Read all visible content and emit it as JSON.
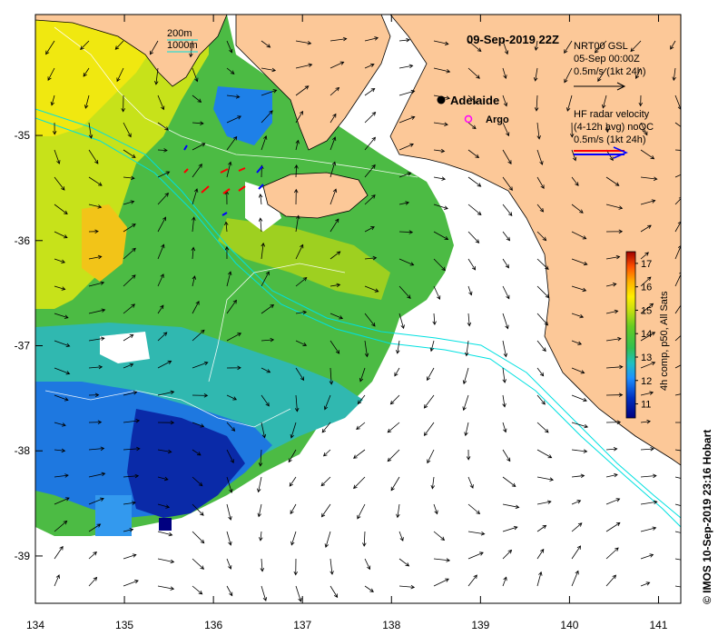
{
  "map": {
    "title": "09-Sep-2019 22Z",
    "credit": "© IMOS 10-Sep-2019 23:16 Hobart",
    "x_ticks": [
      "134",
      "135",
      "136",
      "137",
      "138",
      "139",
      "140",
      "141"
    ],
    "y_ticks": [
      "-35",
      "-36",
      "-37",
      "-38",
      "-39"
    ],
    "x_range": [
      134,
      141.25
    ],
    "y_range": [
      -39.45,
      -33.85
    ],
    "depth_legend": {
      "contour_1": "200m",
      "contour_2": "1000m"
    },
    "nrt_legend": {
      "line1": "NRT00 GSL",
      "line2": "05-Sep 00:00Z",
      "line3": "0.5m/s (1kt 24h)"
    },
    "hf_legend": {
      "line1": "HF radar velocity",
      "line2": "(4-12h avg) noQC",
      "line3": "0.5m/s (1kt 24h)"
    },
    "places": {
      "adelaide": "Adelaide",
      "argo": "Argo"
    },
    "colorbar": {
      "label": "4h comp, p50, All Sats",
      "ticks": [
        "11",
        "12",
        "13",
        "14",
        "15",
        "16",
        "17"
      ],
      "range": [
        10.4,
        17.5
      ]
    },
    "colors": {
      "land": "#fcc898",
      "contour": "#00e0e0",
      "argo": "#ff00ff",
      "hf_red": "#ff0000",
      "hf_blue": "#0000ff"
    }
  }
}
